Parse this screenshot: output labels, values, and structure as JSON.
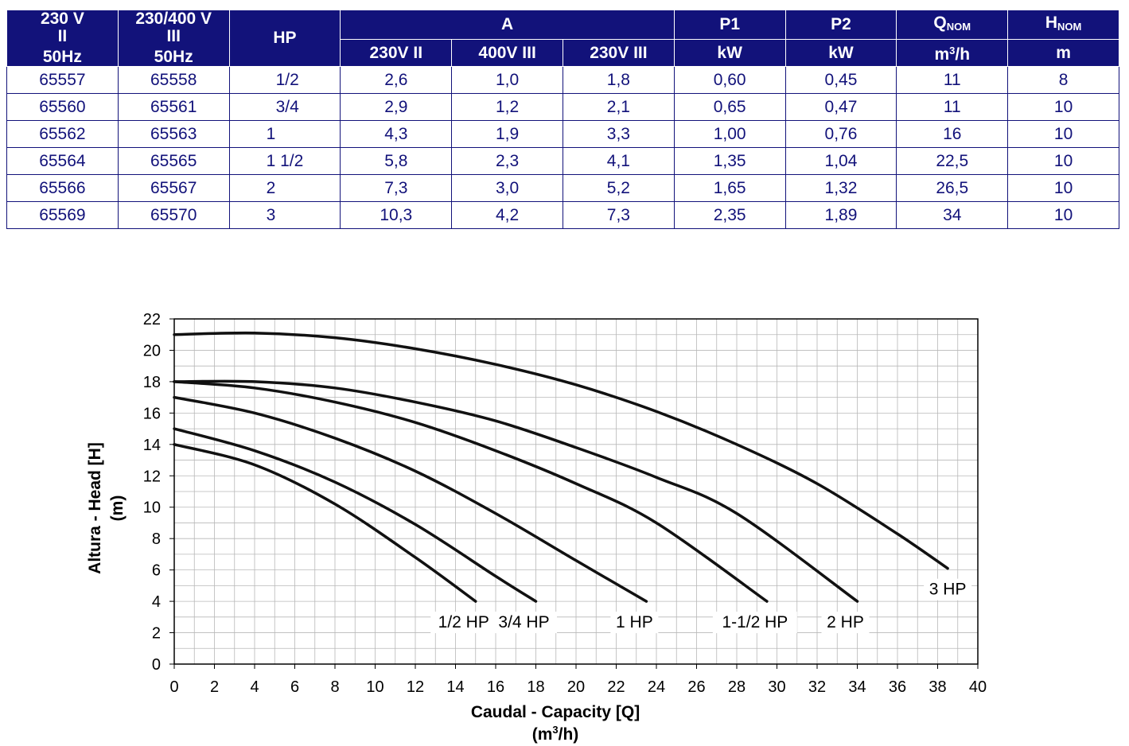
{
  "table": {
    "header": {
      "col1": [
        "230 V",
        "II",
        "50Hz"
      ],
      "col2": [
        "230/400 V",
        "III",
        "50Hz"
      ],
      "hp": "HP",
      "a": "A",
      "a_sub": [
        "230V II",
        "400V III",
        "230V III"
      ],
      "p1": "P1",
      "p1_unit": "kW",
      "p2": "P2",
      "p2_unit": "kW",
      "qnom_main": "Q",
      "qnom_sub": "NOM",
      "qnom_unit_main": "m",
      "qnom_unit_sup": "3",
      "qnom_unit_rest": "/h",
      "hnom_main": "H",
      "hnom_sub": "NOM",
      "hnom_unit": "m"
    },
    "rows": [
      [
        "65557",
        "65558",
        "1/2",
        "2,6",
        "1,0",
        "1,8",
        "0,60",
        "0,45",
        "11",
        "8"
      ],
      [
        "65560",
        "65561",
        "3/4",
        "2,9",
        "1,2",
        "2,1",
        "0,65",
        "0,47",
        "11",
        "10"
      ],
      [
        "65562",
        "65563",
        "1",
        "4,3",
        "1,9",
        "3,3",
        "1,00",
        "0,76",
        "16",
        "10"
      ],
      [
        "65564",
        "65565",
        "1 1/2",
        "5,8",
        "2,3",
        "4,1",
        "1,35",
        "1,04",
        "22,5",
        "10"
      ],
      [
        "65566",
        "65567",
        "2",
        "7,3",
        "3,0",
        "5,2",
        "1,65",
        "1,32",
        "26,5",
        "10"
      ],
      [
        "65569",
        "65570",
        "3",
        "10,3",
        "4,2",
        "7,3",
        "2,35",
        "1,89",
        "34",
        "10"
      ]
    ]
  },
  "chart_data": {
    "type": "line",
    "xlabel": "Caudal - Capacity [Q]",
    "xlabel_unit_main": "(m",
    "xlabel_unit_sup": "3",
    "xlabel_unit_rest": "/h)",
    "ylabel": "Altura - Head [H]",
    "ylabel_unit": "(m)",
    "xlim": [
      0,
      40
    ],
    "ylim": [
      0,
      22
    ],
    "xticks": [
      0,
      2,
      4,
      6,
      8,
      10,
      12,
      14,
      16,
      18,
      20,
      22,
      24,
      26,
      28,
      30,
      32,
      34,
      36,
      38,
      40
    ],
    "yticks": [
      0,
      2,
      4,
      6,
      8,
      10,
      12,
      14,
      16,
      18,
      20,
      22
    ],
    "grid": true,
    "series": [
      {
        "name": "1/2 HP",
        "x": [
          0,
          4,
          8,
          12,
          15
        ],
        "y": [
          14,
          12.7,
          10.2,
          6.8,
          4
        ]
      },
      {
        "name": "3/4 HP",
        "x": [
          0,
          4,
          8,
          12,
          16,
          18
        ],
        "y": [
          15,
          13.6,
          11.6,
          8.9,
          5.6,
          4
        ]
      },
      {
        "name": "1 HP",
        "x": [
          0,
          4,
          8,
          12,
          16,
          20,
          23.5
        ],
        "y": [
          17,
          16,
          14.4,
          12.3,
          9.6,
          6.6,
          4
        ]
      },
      {
        "name": "1-1/2 HP",
        "x": [
          0,
          4,
          8,
          12,
          16,
          20,
          24,
          29.5
        ],
        "y": [
          18,
          17.6,
          16.7,
          15.4,
          13.6,
          11.5,
          9,
          4
        ]
      },
      {
        "name": "2 HP",
        "x": [
          0,
          4,
          8,
          12,
          16,
          20,
          24,
          28,
          34
        ],
        "y": [
          18,
          18,
          17.6,
          16.7,
          15.5,
          13.8,
          11.9,
          9.6,
          4
        ]
      },
      {
        "name": "3 HP",
        "x": [
          0,
          4,
          8,
          12,
          16,
          20,
          24,
          28,
          32,
          36,
          38.5
        ],
        "y": [
          21,
          21.1,
          20.8,
          20.1,
          19.1,
          17.8,
          16.1,
          14,
          11.5,
          8.3,
          6.1
        ]
      }
    ]
  }
}
